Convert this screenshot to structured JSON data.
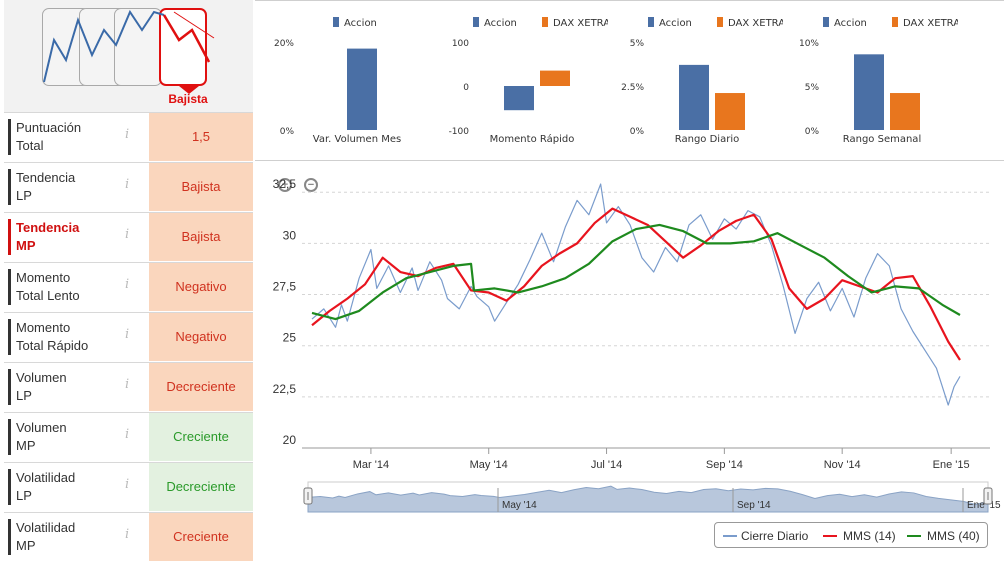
{
  "trend": {
    "selected_label": "Bajista"
  },
  "indicators": [
    {
      "label_1": "Puntuación",
      "label_2": "Total",
      "value": "1,5",
      "tone": "neg",
      "highlight": false
    },
    {
      "label_1": "Tendencia",
      "label_2": "LP",
      "value": "Bajista",
      "tone": "neg",
      "highlight": false
    },
    {
      "label_1": "Tendencia",
      "label_2": "MP",
      "value": "Bajista",
      "tone": "neg",
      "highlight": true
    },
    {
      "label_1": "Momento",
      "label_2": "Total Lento",
      "value": "Negativo",
      "tone": "neg",
      "highlight": false
    },
    {
      "label_1": "Momento",
      "label_2": "Total Rápido",
      "value": "Negativo",
      "tone": "neg",
      "highlight": false
    },
    {
      "label_1": "Volumen",
      "label_2": "LP",
      "value": "Decreciente",
      "tone": "neg",
      "highlight": false
    },
    {
      "label_1": "Volumen",
      "label_2": "MP",
      "value": "Creciente",
      "tone": "pos",
      "highlight": false
    },
    {
      "label_1": "Volatilidad",
      "label_2": "LP",
      "value": "Decreciente",
      "tone": "pos",
      "highlight": false
    },
    {
      "label_1": "Volatilidad",
      "label_2": "MP",
      "value": "Creciente",
      "tone": "neg",
      "highlight": false
    }
  ],
  "info_glyph": "i",
  "colors": {
    "accion": "#4a6fa5",
    "dax": "#e8761e",
    "cierre": "#7a9ccc",
    "mms14": "#e8141e",
    "mms40": "#1e8a1e",
    "navigator_fill": "#b8c7dc"
  },
  "chart_data": [
    {
      "type": "bar",
      "title": "Var. Volumen Mes",
      "series": [
        {
          "name": "Accion",
          "values": [
            18.5
          ]
        }
      ],
      "y_ticks": [
        "20%",
        "0%"
      ],
      "ylim": [
        0,
        20
      ]
    },
    {
      "type": "bar",
      "title": "Momento Rápido",
      "series": [
        {
          "name": "Accion",
          "values": [
            -55
          ]
        },
        {
          "name": "DAX XETRA",
          "values": [
            35
          ]
        }
      ],
      "y_ticks": [
        "100",
        "0",
        "-100"
      ],
      "ylim": [
        -100,
        100
      ]
    },
    {
      "type": "bar",
      "title": "Rango Diario",
      "series": [
        {
          "name": "Accion",
          "values": [
            3.7
          ]
        },
        {
          "name": "DAX XETRA",
          "values": [
            2.1
          ]
        }
      ],
      "y_ticks": [
        "5%",
        "2.5%",
        "0%"
      ],
      "ylim": [
        0,
        5
      ]
    },
    {
      "type": "bar",
      "title": "Rango Semanal",
      "series": [
        {
          "name": "Accion",
          "values": [
            8.6
          ]
        },
        {
          "name": "DAX XETRA",
          "values": [
            4.2
          ]
        }
      ],
      "y_ticks": [
        "10%",
        "5%",
        "0%"
      ],
      "ylim": [
        0,
        10
      ]
    },
    {
      "type": "line",
      "title": "",
      "x_range": [
        0,
        11
      ],
      "ylim": [
        20,
        33
      ],
      "y_ticks": [
        20,
        22.5,
        25,
        27.5,
        30,
        32.5
      ],
      "y_tick_labels": [
        "20",
        "22,5",
        "25",
        "27,5",
        "30",
        "32,5"
      ],
      "x_ticks": [
        {
          "x": 1.0,
          "label": "Mar '14"
        },
        {
          "x": 3.0,
          "label": "May '14"
        },
        {
          "x": 5.0,
          "label": "Jul '14"
        },
        {
          "x": 7.0,
          "label": "Sep '14"
        },
        {
          "x": 9.0,
          "label": "Nov '14"
        },
        {
          "x": 10.85,
          "label": "Ene '15"
        }
      ],
      "navigator_ticks": [
        "May '14",
        "Sep '14",
        "Ene '15"
      ],
      "series": [
        {
          "name": "Cierre Diario",
          "x": [
            0,
            0.2,
            0.4,
            0.5,
            0.6,
            0.8,
            1.0,
            1.1,
            1.3,
            1.5,
            1.7,
            1.8,
            2.0,
            2.2,
            2.3,
            2.5,
            2.7,
            2.8,
            3.0,
            3.1,
            3.3,
            3.5,
            3.7,
            3.9,
            4.1,
            4.3,
            4.5,
            4.7,
            4.9,
            5.0,
            5.2,
            5.4,
            5.6,
            5.8,
            6.0,
            6.2,
            6.4,
            6.6,
            6.8,
            7.0,
            7.2,
            7.4,
            7.6,
            7.8,
            8.0,
            8.2,
            8.4,
            8.6,
            8.8,
            9.0,
            9.2,
            9.4,
            9.6,
            9.8,
            10.0,
            10.2,
            10.4,
            10.6,
            10.8,
            10.9,
            11.0
          ],
          "values": [
            26.3,
            26.8,
            25.9,
            27.0,
            26.2,
            28.3,
            29.7,
            27.8,
            28.9,
            27.6,
            28.8,
            27.7,
            29.1,
            28.2,
            27.3,
            26.8,
            27.9,
            27.4,
            26.9,
            26.2,
            27.1,
            28.0,
            29.2,
            30.5,
            29.1,
            30.8,
            32.1,
            31.4,
            32.9,
            31.0,
            31.8,
            30.9,
            29.3,
            28.6,
            29.8,
            29.1,
            30.9,
            31.4,
            30.2,
            31.2,
            30.7,
            31.6,
            31.3,
            29.9,
            27.9,
            25.6,
            27.3,
            28.1,
            26.7,
            27.8,
            26.4,
            28.3,
            29.5,
            28.9,
            26.8,
            25.7,
            24.8,
            23.9,
            22.1,
            23.0,
            23.5
          ]
        },
        {
          "name": "MMS (14)",
          "x": [
            0,
            0.3,
            0.6,
            0.9,
            1.2,
            1.5,
            1.8,
            2.1,
            2.4,
            2.7,
            3.0,
            3.3,
            3.6,
            3.9,
            4.2,
            4.5,
            4.8,
            5.1,
            5.4,
            5.7,
            6.0,
            6.3,
            6.6,
            6.9,
            7.2,
            7.5,
            7.8,
            8.1,
            8.4,
            8.7,
            9.0,
            9.3,
            9.6,
            9.9,
            10.2,
            10.5,
            10.8,
            11.0
          ],
          "values": [
            26.0,
            26.7,
            27.3,
            28.0,
            29.3,
            28.6,
            28.4,
            28.8,
            29.0,
            27.7,
            27.6,
            27.2,
            27.9,
            28.9,
            29.5,
            30.0,
            31.0,
            31.7,
            31.3,
            30.9,
            30.1,
            29.3,
            29.9,
            30.6,
            31.1,
            31.4,
            30.2,
            27.8,
            26.8,
            27.3,
            28.2,
            27.9,
            27.6,
            28.3,
            28.4,
            26.9,
            25.2,
            24.3
          ]
        },
        {
          "name": "MMS (40)",
          "x": [
            0,
            0.4,
            0.8,
            1.2,
            1.6,
            2.0,
            2.4,
            2.7,
            2.75,
            3.1,
            3.5,
            3.9,
            4.3,
            4.7,
            5.1,
            5.5,
            5.9,
            6.3,
            6.7,
            7.1,
            7.5,
            7.9,
            8.3,
            8.7,
            9.1,
            9.5,
            9.9,
            10.3,
            10.7,
            11.0
          ],
          "values": [
            26.6,
            26.3,
            26.7,
            27.6,
            28.3,
            28.6,
            28.9,
            29.0,
            27.7,
            27.8,
            27.6,
            27.9,
            28.3,
            29.0,
            30.1,
            30.7,
            30.9,
            30.6,
            30.0,
            30.0,
            30.1,
            30.5,
            29.9,
            29.3,
            28.4,
            27.6,
            27.9,
            27.8,
            27.0,
            26.5
          ]
        }
      ]
    }
  ]
}
